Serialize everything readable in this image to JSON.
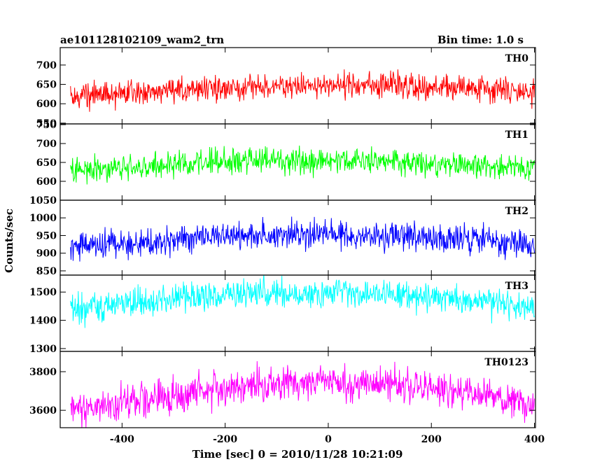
{
  "header": {
    "title": "ae101128102109_wam2_trn",
    "bin_time": "Bin time: 1.0 s"
  },
  "chart_data": {
    "type": "line",
    "xlabel": "Time [sec] 0 = 2010/11/28 10:21:09",
    "ylabel": "Counts/sec",
    "xlim": [
      -520,
      402
    ],
    "xticks": [
      -400,
      -200,
      0,
      200,
      400
    ],
    "x_range": [
      -500,
      400
    ],
    "bin_time_s": 1.0,
    "panels": [
      {
        "name": "TH0",
        "color": "#ff0000",
        "ylim": [
          548,
          745
        ],
        "yticks": [
          550,
          600,
          650,
          700
        ],
        "mean_profile": {
          "x": [
            -500,
            -300,
            -150,
            0,
            150,
            300,
            400
          ],
          "y": [
            620,
            632,
            645,
            648,
            646,
            638,
            628
          ]
        },
        "noise_halfwidth": 42
      },
      {
        "name": "TH1",
        "color": "#00ff00",
        "ylim": [
          550,
          752
        ],
        "yticks": [
          600,
          650,
          700,
          750
        ],
        "mean_profile": {
          "x": [
            -500,
            -300,
            -150,
            0,
            150,
            300,
            400
          ],
          "y": [
            628,
            642,
            655,
            655,
            650,
            642,
            635
          ]
        },
        "noise_halfwidth": 45
      },
      {
        "name": "TH2",
        "color": "#0000ff",
        "ylim": [
          838,
          1050
        ],
        "yticks": [
          850,
          900,
          950,
          1000,
          1050
        ],
        "mean_profile": {
          "x": [
            -500,
            -300,
            -150,
            0,
            150,
            300,
            400
          ],
          "y": [
            915,
            938,
            952,
            955,
            948,
            935,
            920
          ]
        },
        "noise_halfwidth": 55
      },
      {
        "name": "TH3",
        "color": "#00ffff",
        "ylim": [
          1290,
          1560
        ],
        "yticks": [
          1300,
          1400,
          1500
        ],
        "mean_profile": {
          "x": [
            -500,
            -300,
            -150,
            0,
            150,
            300,
            400
          ],
          "y": [
            1435,
            1475,
            1495,
            1500,
            1490,
            1465,
            1440
          ]
        },
        "noise_halfwidth": 65
      },
      {
        "name": "TH0123",
        "color": "#ff00ff",
        "ylim": [
          3510,
          3905
        ],
        "yticks": [
          3600,
          3800
        ],
        "mean_profile": {
          "x": [
            -500,
            -300,
            -150,
            0,
            150,
            300,
            400
          ],
          "y": [
            3600,
            3680,
            3735,
            3745,
            3730,
            3680,
            3620
          ]
        },
        "noise_halfwidth": 115
      }
    ]
  }
}
